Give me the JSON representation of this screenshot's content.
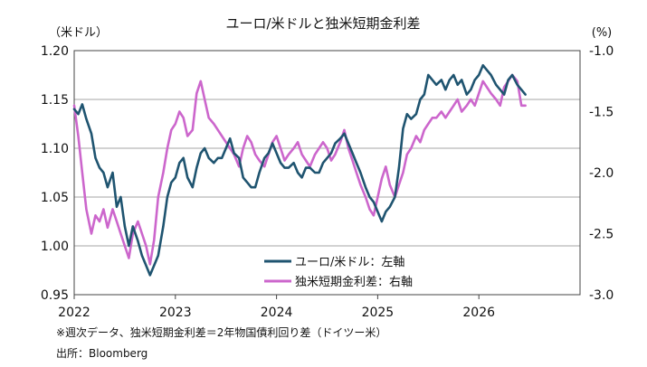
{
  "chart_data": {
    "type": "line",
    "title": "ユーロ/米ドルと独米短期金利差",
    "left_axis_unit": "（米ドル）",
    "right_axis_unit": "(%)",
    "left_ylim": [
      0.95,
      1.2
    ],
    "right_ylim": [
      -3.0,
      -1.0
    ],
    "left_ticks": [
      "1.20",
      "1.15",
      "1.10",
      "1.05",
      "1.00",
      "0.95"
    ],
    "right_ticks": [
      "-1.0",
      "-1.5",
      "-2.0",
      "-2.5",
      "-3.0"
    ],
    "x_ticks": [
      "2022",
      "2023",
      "2024",
      "2025",
      "2026"
    ],
    "xlim": [
      2022.0,
      2027.0
    ],
    "grid": "horizontal",
    "legend_placement": "bottom-center",
    "series": [
      {
        "name": "ユーロ/米ドル：左軸",
        "axis": "left",
        "color": "#1f5470",
        "x": [
          2022.0,
          2022.04,
          2022.08,
          2022.12,
          2022.17,
          2022.21,
          2022.25,
          2022.29,
          2022.33,
          2022.38,
          2022.42,
          2022.46,
          2022.5,
          2022.54,
          2022.58,
          2022.63,
          2022.67,
          2022.71,
          2022.75,
          2022.79,
          2022.83,
          2022.88,
          2022.92,
          2022.96,
          2023.0,
          2023.04,
          2023.08,
          2023.12,
          2023.17,
          2023.21,
          2023.25,
          2023.29,
          2023.33,
          2023.38,
          2023.42,
          2023.46,
          2023.5,
          2023.54,
          2023.58,
          2023.63,
          2023.67,
          2023.71,
          2023.75,
          2023.79,
          2023.83,
          2023.88,
          2023.92,
          2023.96,
          2024.0,
          2024.04,
          2024.08,
          2024.12,
          2024.17,
          2024.21,
          2024.25,
          2024.29,
          2024.33,
          2024.38,
          2024.42,
          2024.46,
          2024.5,
          2024.54,
          2024.58,
          2024.63,
          2024.67,
          2024.71,
          2024.75,
          2024.79,
          2024.83,
          2024.88,
          2024.92,
          2024.96,
          2025.0,
          2025.04,
          2025.08,
          2025.12,
          2025.17,
          2025.21,
          2025.25,
          2025.29,
          2025.33,
          2025.38,
          2025.42,
          2025.46,
          2025.5,
          2025.54,
          2025.58,
          2025.63,
          2025.67,
          2025.71,
          2025.75,
          2025.79,
          2025.83,
          2025.88,
          2025.92,
          2025.96,
          2026.0,
          2026.04,
          2026.08,
          2026.12,
          2026.17,
          2026.21,
          2026.25,
          2026.29,
          2026.33,
          2026.38,
          2026.42,
          2026.46
        ],
        "values": [
          1.14,
          1.135,
          1.145,
          1.13,
          1.115,
          1.09,
          1.08,
          1.075,
          1.06,
          1.075,
          1.04,
          1.05,
          1.02,
          1.0,
          1.02,
          1.005,
          0.99,
          0.98,
          0.97,
          0.98,
          0.99,
          1.02,
          1.05,
          1.065,
          1.07,
          1.085,
          1.09,
          1.07,
          1.06,
          1.08,
          1.095,
          1.1,
          1.09,
          1.085,
          1.09,
          1.09,
          1.1,
          1.11,
          1.095,
          1.09,
          1.07,
          1.065,
          1.06,
          1.06,
          1.075,
          1.09,
          1.095,
          1.105,
          1.095,
          1.085,
          1.08,
          1.08,
          1.085,
          1.075,
          1.07,
          1.08,
          1.08,
          1.075,
          1.075,
          1.085,
          1.09,
          1.095,
          1.105,
          1.11,
          1.115,
          1.105,
          1.095,
          1.085,
          1.075,
          1.06,
          1.05,
          1.045,
          1.035,
          1.025,
          1.035,
          1.04,
          1.05,
          1.08,
          1.12,
          1.135,
          1.13,
          1.135,
          1.15,
          1.155,
          1.175,
          1.17,
          1.165,
          1.17,
          1.16,
          1.17,
          1.175,
          1.165,
          1.17,
          1.155,
          1.16,
          1.17,
          1.175,
          1.185,
          1.18,
          1.175,
          1.165,
          1.16,
          1.155,
          1.17,
          1.175,
          1.165,
          1.16,
          1.155
        ]
      },
      {
        "name": "独米短期金利差：右軸",
        "axis": "right",
        "color": "#cc66cc",
        "x": [
          2022.0,
          2022.04,
          2022.08,
          2022.12,
          2022.17,
          2022.21,
          2022.25,
          2022.29,
          2022.33,
          2022.38,
          2022.42,
          2022.46,
          2022.5,
          2022.54,
          2022.58,
          2022.63,
          2022.67,
          2022.71,
          2022.75,
          2022.79,
          2022.83,
          2022.88,
          2022.92,
          2022.96,
          2023.0,
          2023.04,
          2023.08,
          2023.12,
          2023.17,
          2023.21,
          2023.25,
          2023.29,
          2023.33,
          2023.38,
          2023.42,
          2023.46,
          2023.5,
          2023.54,
          2023.58,
          2023.63,
          2023.67,
          2023.71,
          2023.75,
          2023.79,
          2023.83,
          2023.88,
          2023.92,
          2023.96,
          2024.0,
          2024.04,
          2024.08,
          2024.12,
          2024.17,
          2024.21,
          2024.25,
          2024.29,
          2024.33,
          2024.38,
          2024.42,
          2024.46,
          2024.5,
          2024.54,
          2024.58,
          2024.63,
          2024.67,
          2024.71,
          2024.75,
          2024.79,
          2024.83,
          2024.88,
          2024.92,
          2024.96,
          2025.0,
          2025.04,
          2025.08,
          2025.12,
          2025.17,
          2025.21,
          2025.25,
          2025.29,
          2025.33,
          2025.38,
          2025.42,
          2025.46,
          2025.5,
          2025.54,
          2025.58,
          2025.63,
          2025.67,
          2025.71,
          2025.75,
          2025.79,
          2025.83,
          2025.88,
          2025.92,
          2025.96,
          2026.0,
          2026.04,
          2026.08,
          2026.12,
          2026.17,
          2026.21,
          2026.25,
          2026.29,
          2026.33,
          2026.38,
          2026.42,
          2026.46
        ],
        "values": [
          -1.45,
          -1.7,
          -2.0,
          -2.3,
          -2.5,
          -2.35,
          -2.4,
          -2.3,
          -2.45,
          -2.3,
          -2.4,
          -2.5,
          -2.6,
          -2.7,
          -2.5,
          -2.4,
          -2.5,
          -2.6,
          -2.75,
          -2.55,
          -2.2,
          -2.0,
          -1.8,
          -1.65,
          -1.6,
          -1.5,
          -1.55,
          -1.7,
          -1.65,
          -1.35,
          -1.25,
          -1.4,
          -1.55,
          -1.6,
          -1.65,
          -1.7,
          -1.75,
          -1.8,
          -1.85,
          -1.95,
          -1.8,
          -1.7,
          -1.75,
          -1.85,
          -1.9,
          -1.95,
          -1.85,
          -1.75,
          -1.7,
          -1.8,
          -1.9,
          -1.85,
          -1.8,
          -1.75,
          -1.85,
          -1.9,
          -1.95,
          -1.85,
          -1.8,
          -1.75,
          -1.8,
          -1.9,
          -1.85,
          -1.75,
          -1.65,
          -1.8,
          -1.9,
          -2.0,
          -2.1,
          -2.2,
          -2.3,
          -2.35,
          -2.2,
          -2.05,
          -1.95,
          -2.1,
          -2.2,
          -2.1,
          -2.0,
          -1.85,
          -1.8,
          -1.7,
          -1.75,
          -1.65,
          -1.6,
          -1.55,
          -1.55,
          -1.5,
          -1.55,
          -1.5,
          -1.45,
          -1.4,
          -1.5,
          -1.45,
          -1.4,
          -1.45,
          -1.35,
          -1.25,
          -1.3,
          -1.35,
          -1.4,
          -1.45,
          -1.3,
          -1.25,
          -1.2,
          -1.25,
          -1.45,
          -1.45
        ]
      }
    ],
    "notes": [
      "※週次データ、独米短期金利差＝2年物国債利回り差（ドイツー米）",
      "出所：Bloomberg"
    ]
  }
}
